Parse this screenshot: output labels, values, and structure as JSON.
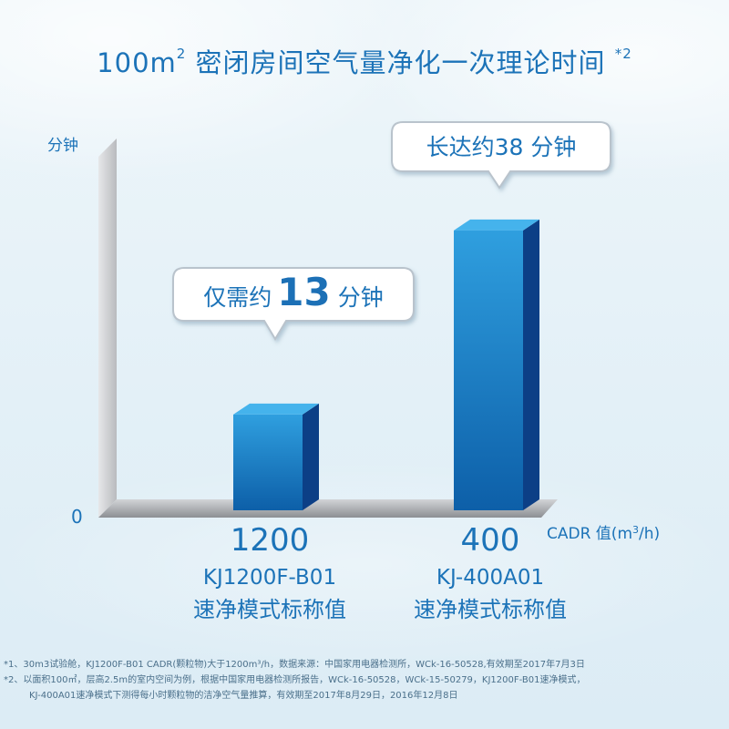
{
  "title": {
    "prefix": "100m",
    "sup": "2",
    "main": " 密闭房间空气量净化一次理论时间 ",
    "note": "*2"
  },
  "chart_data": {
    "type": "bar",
    "ylabel": "分钟",
    "y_zero_label": "0",
    "xlabel_prefix": "CADR 值(m",
    "xlabel_sup": "3",
    "xlabel_suffix": "/h)",
    "categories": [
      "1200",
      "400"
    ],
    "values": [
      13,
      38
    ],
    "ylim": [
      0,
      48
    ],
    "bars": [
      {
        "cadr": "1200",
        "model": "KJ1200F-B01",
        "desc": "速净模式标称值",
        "minutes": 13,
        "callout": {
          "prefix": "仅需约",
          "number": "13",
          "suffix": "分钟"
        }
      },
      {
        "cadr": "400",
        "model": "KJ-400A01",
        "desc": "速净模式标称值",
        "minutes": 38,
        "callout": {
          "prefix": "长达约",
          "number": "38",
          "suffix": "分钟"
        }
      }
    ],
    "colors": {
      "bar_front_top": "#2f9fdf",
      "bar_front_bottom": "#0d5fa8",
      "bar_side": "#0c3f86",
      "bar_top": "#45b3ec",
      "axis_wall": "#c9cbce",
      "axis_shadow": "#8f9296",
      "accent_text": "#1c73b8",
      "callout_number": "#1a6fb6"
    }
  },
  "footnotes": [
    "*1、30m3试验舱，KJ1200F-B01 CADR(颗粒物)大于1200m³/h，数据来源：中国家用电器检测所，WCk-16-50528,有效期至2017年7月3日",
    "*2、以面积100㎡，层高2.5m的室内空间为例，根据中国家用电器检测所报告，WCk-16-50528，WCk-15-50279，KJ1200F-B01速净模式，",
    "KJ-400A01速净模式下测得每小时颗粒物的洁净空气量推算，有效期至2017年8月29日，2016年12月8日"
  ]
}
